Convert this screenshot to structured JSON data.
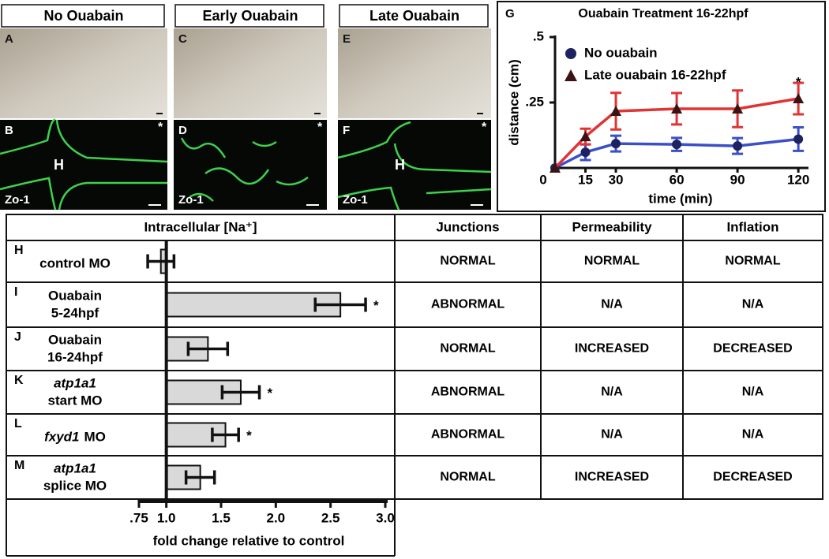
{
  "panels": [
    {
      "title": "No Ouabain",
      "top_letter": "A",
      "bottom_letter": "B",
      "stain": "Zo-1",
      "region": "H",
      "star": "*"
    },
    {
      "title": "Early Ouabain",
      "top_letter": "C",
      "bottom_letter": "D",
      "stain": "Zo-1",
      "star": "*"
    },
    {
      "title": "Late Ouabain",
      "top_letter": "E",
      "bottom_letter": "F",
      "stain": "Zo-1",
      "region": "H",
      "star": "*"
    }
  ],
  "chart_data": [
    {
      "type": "line",
      "panel": "G",
      "title": "Ouabain Treatment 16-22hpf",
      "x_label": "time (min)",
      "y_label": "distance (cm)",
      "x": [
        0,
        15,
        30,
        60,
        90,
        120
      ],
      "xlim": [
        0,
        125
      ],
      "xticks": [
        0,
        15,
        30,
        60,
        90,
        120
      ],
      "ylim": [
        0,
        0.5
      ],
      "yticks": [
        {
          "value": 0.25,
          "label": ".25"
        },
        {
          "value": 0.5,
          "label": ".5"
        }
      ],
      "series": [
        {
          "name": "No ouabain",
          "color": "#3a4fc8",
          "marker_color": "#1c2360",
          "marker": "circle",
          "values": [
            0,
            0.06,
            0.093,
            0.09,
            0.084,
            0.11
          ],
          "errors": [
            0,
            0.03,
            0.03,
            0.025,
            0.03,
            0.045
          ]
        },
        {
          "name": "Late ouabain 16-22hpf",
          "color": "#e03434",
          "marker_color": "#3a1414",
          "marker": "triangle",
          "values": [
            0,
            0.12,
            0.217,
            0.226,
            0.226,
            0.265
          ],
          "errors": [
            0,
            0.03,
            0.07,
            0.06,
            0.07,
            0.06
          ]
        }
      ],
      "annotations": [
        {
          "text": "*",
          "x": 120,
          "y": 0.35
        }
      ]
    },
    {
      "type": "hbar",
      "x_label": "fold change relative to control",
      "xlim": [
        0.75,
        3.0
      ],
      "xticks": [
        {
          "value": 0.75,
          "label": ".75"
        },
        {
          "value": 1.0,
          "label": "1.0"
        },
        {
          "value": 1.5,
          "label": "1.5"
        },
        {
          "value": 2.0,
          "label": "2.0"
        },
        {
          "value": 2.5,
          "label": "2.5"
        },
        {
          "value": 3.0,
          "label": "3.0"
        }
      ],
      "color": "#d9d9d9",
      "values": [
        0.95,
        2.59,
        1.38,
        1.68,
        1.54,
        1.31
      ],
      "errors": [
        0.12,
        0.23,
        0.18,
        0.17,
        0.12,
        0.13
      ],
      "significance": [
        null,
        "*",
        null,
        "*",
        "*",
        null
      ]
    }
  ],
  "table": {
    "headers": [
      "Intracellular [Na⁺]",
      "Junctions",
      "Permeability",
      "Inflation"
    ],
    "rows": [
      {
        "panel": "H",
        "lines": [
          [
            {
              "text": "control MO"
            }
          ]
        ],
        "cells": [
          "NORMAL",
          "NORMAL",
          "NORMAL"
        ]
      },
      {
        "panel": "I",
        "lines": [
          [
            {
              "text": "Ouabain"
            }
          ],
          [
            {
              "text": "5-24hpf"
            }
          ]
        ],
        "cells": [
          "ABNORMAL",
          "N/A",
          "N/A"
        ]
      },
      {
        "panel": "J",
        "lines": [
          [
            {
              "text": "Ouabain"
            }
          ],
          [
            {
              "text": "16-24hpf"
            }
          ]
        ],
        "cells": [
          "NORMAL",
          "INCREASED",
          "DECREASED"
        ]
      },
      {
        "panel": "K",
        "lines": [
          [
            {
              "text": "atp1a1",
              "italic": true
            }
          ],
          [
            {
              "text": "start MO"
            }
          ]
        ],
        "cells": [
          "ABNORMAL",
          "N/A",
          "N/A"
        ]
      },
      {
        "panel": "L",
        "lines": [
          [
            {
              "text": "fxyd1",
              "italic": true
            },
            {
              "text": "MO"
            }
          ]
        ],
        "cells": [
          "ABNORMAL",
          "N/A",
          "N/A"
        ]
      },
      {
        "panel": "M",
        "lines": [
          [
            {
              "text": "atp1a1",
              "italic": true
            }
          ],
          [
            {
              "text": "splice MO"
            }
          ]
        ],
        "cells": [
          "NORMAL",
          "INCREASED",
          "DECREASED"
        ]
      }
    ]
  }
}
